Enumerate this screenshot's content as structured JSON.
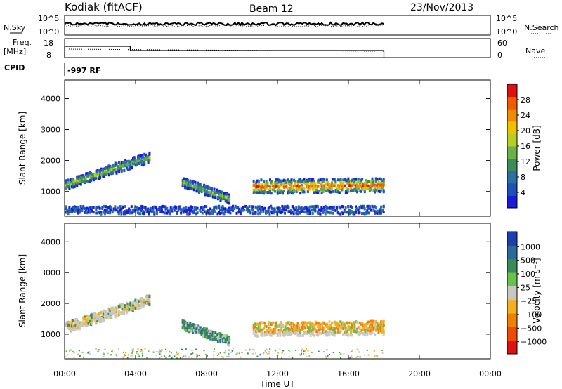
{
  "header": {
    "station": "Kodiak (fitACF)",
    "beam": "Beam 12",
    "date": "23/Nov/2013"
  },
  "noise_panel": {
    "left_label": "N.Sky",
    "left_ticks": [
      "10^5",
      "10^0"
    ],
    "right_label": "N.Search",
    "right_ticks": [
      "10^5",
      "10^0"
    ]
  },
  "freq_panel": {
    "left_label_1": "Freq.",
    "left_label_2": "[MHz]",
    "left_ticks": [
      "18",
      "8"
    ],
    "right_label": "Nave",
    "right_ticks": [
      "60",
      "0"
    ]
  },
  "cpid": {
    "label": "CPID",
    "value": "-997 RF"
  },
  "colors": {
    "power_scale": [
      "#1a1adc",
      "#1f4fb8",
      "#2b6fa0",
      "#3c8c5a",
      "#6ab04c",
      "#b9cc22",
      "#f0c000",
      "#f08a00",
      "#f05a00",
      "#e01010"
    ],
    "velocity_scale": [
      "#1a3fb0",
      "#2a6a9a",
      "#3a8a5a",
      "#66c24c",
      "#c8c8c0",
      "#f0b020",
      "#f08000",
      "#f04a00",
      "#e01010"
    ]
  },
  "chart_data": [
    {
      "type": "heatmap",
      "name": "power",
      "xlabel": "",
      "ylabel": "Slant Range [km]",
      "ylim": [
        200,
        4600
      ],
      "xlim": [
        0,
        24
      ],
      "y_ticks": [
        "1000",
        "2000",
        "3000",
        "4000"
      ],
      "y_tick_values": [
        1000,
        2000,
        3000,
        4000
      ],
      "colorbar_label": "Power [dB]",
      "colorbar_ticks": [
        "4",
        "8",
        "12",
        "16",
        "20",
        "24",
        "28"
      ],
      "colorbar_range": [
        0,
        32
      ],
      "scatter_regions": [
        {
          "t0": 0.0,
          "t1": 2.8,
          "r_start": 1200,
          "r_end": 1750,
          "width": 300,
          "peak": 18
        },
        {
          "t0": 2.8,
          "t1": 4.8,
          "r_start": 1750,
          "r_end": 2100,
          "width": 350,
          "peak": 14
        },
        {
          "t0": 6.6,
          "t1": 9.3,
          "r_start": 1300,
          "r_end": 750,
          "width": 300,
          "peak": 16
        },
        {
          "t0": 10.6,
          "t1": 18.0,
          "r_start": 1150,
          "r_end": 1200,
          "width": 450,
          "peak": 30
        },
        {
          "t0": 0.0,
          "t1": 18.0,
          "r_start": 400,
          "r_end": 400,
          "width": 250,
          "peak": 8
        }
      ]
    },
    {
      "type": "heatmap",
      "name": "velocity",
      "xlabel": "Time UT",
      "ylabel": "Slant Range [km]",
      "ylim": [
        200,
        4600
      ],
      "xlim": [
        0,
        24
      ],
      "y_ticks": [
        "1000",
        "2000",
        "3000",
        "4000"
      ],
      "y_tick_values": [
        1000,
        2000,
        3000,
        4000
      ],
      "x_ticks": [
        "00:00",
        "04:00",
        "08:00",
        "12:00",
        "16:00",
        "20:00",
        "00:00"
      ],
      "x_tick_values": [
        0,
        4,
        8,
        12,
        16,
        20,
        24
      ],
      "colorbar_label": "Velocity [m s⁻¹]",
      "colorbar_ticks": [
        "1000",
        "500",
        "100",
        "25",
        "−25",
        "−100",
        "−500",
        "−1000"
      ],
      "scatter_regions": [
        {
          "t0": 0.0,
          "t1": 4.8,
          "r_start": 1200,
          "r_end": 2100,
          "width": 350,
          "vel": "gray"
        },
        {
          "t0": 6.6,
          "t1": 9.3,
          "r_start": 1300,
          "r_end": 750,
          "width": 300,
          "vel": "green"
        },
        {
          "t0": 10.6,
          "t1": 18.0,
          "r_start": 1150,
          "r_end": 1200,
          "width": 450,
          "vel": "orange"
        }
      ]
    }
  ]
}
